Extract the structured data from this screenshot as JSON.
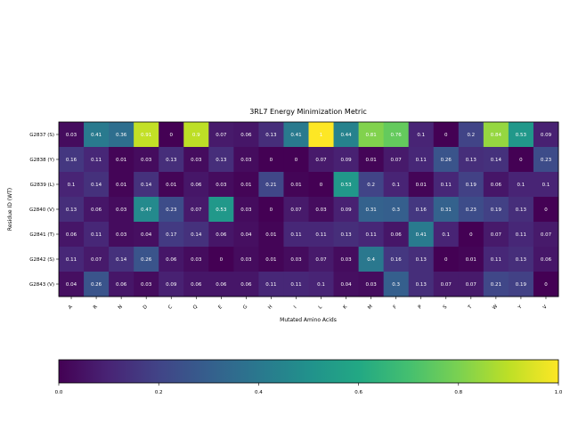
{
  "chart_data": {
    "type": "heatmap",
    "title": "3RL7 Energy Minimization Metric",
    "xlabel": "Mutated Amino Acids",
    "ylabel": "Residue ID (WT)",
    "x_categories": [
      "A",
      "R",
      "N",
      "D",
      "C",
      "Q",
      "E",
      "G",
      "H",
      "I",
      "L",
      "K",
      "M",
      "F",
      "P",
      "S",
      "T",
      "W",
      "Y",
      "V"
    ],
    "y_categories": [
      "G2837 (S)",
      "G2838 (Y)",
      "G2839 (L)",
      "G2840 (V)",
      "G2841 (T)",
      "G2842 (S)",
      "G2843 (V)"
    ],
    "values": [
      [
        0.03,
        0.41,
        0.36,
        0.91,
        0.0,
        0.9,
        0.07,
        0.06,
        0.13,
        0.41,
        1.0,
        0.44,
        0.81,
        0.76,
        0.1,
        0.0,
        0.2,
        0.84,
        0.53,
        0.09
      ],
      [
        0.16,
        0.11,
        0.01,
        0.03,
        0.13,
        0.03,
        0.13,
        0.03,
        0.0,
        0.0,
        0.07,
        0.09,
        0.01,
        0.07,
        0.11,
        0.26,
        0.13,
        0.14,
        0.0,
        0.23
      ],
      [
        0.1,
        0.14,
        0.01,
        0.14,
        0.01,
        0.06,
        0.03,
        0.01,
        0.21,
        0.01,
        0.0,
        0.53,
        0.2,
        0.1,
        0.01,
        0.11,
        0.19,
        0.06,
        0.1,
        0.1
      ],
      [
        0.13,
        0.06,
        0.03,
        0.47,
        0.23,
        0.07,
        0.53,
        0.03,
        0.0,
        0.07,
        0.03,
        0.09,
        0.31,
        0.3,
        0.16,
        0.31,
        0.23,
        0.19,
        0.13,
        0.0
      ],
      [
        0.06,
        0.11,
        0.03,
        0.04,
        0.17,
        0.14,
        0.06,
        0.04,
        0.01,
        0.11,
        0.11,
        0.13,
        0.11,
        0.06,
        0.41,
        0.1,
        0.0,
        0.07,
        0.11,
        0.07
      ],
      [
        0.11,
        0.07,
        0.14,
        0.26,
        0.06,
        0.03,
        0.0,
        0.03,
        0.01,
        0.03,
        0.07,
        0.03,
        0.4,
        0.16,
        0.13,
        0.0,
        0.01,
        0.11,
        0.13,
        0.06
      ],
      [
        0.04,
        0.26,
        0.06,
        0.03,
        0.09,
        0.06,
        0.06,
        0.06,
        0.11,
        0.11,
        0.1,
        0.04,
        0.03,
        0.3,
        0.13,
        0.07,
        0.07,
        0.21,
        0.19,
        0.0
      ]
    ],
    "value_range": [
      0.0,
      1.0
    ],
    "colormap": "viridis",
    "colorbar_ticks": [
      "0.0",
      "0.2",
      "0.4",
      "0.6",
      "0.8",
      "1.0"
    ],
    "colorbar_orientation": "horizontal",
    "colorbar_placement": "bottom"
  }
}
